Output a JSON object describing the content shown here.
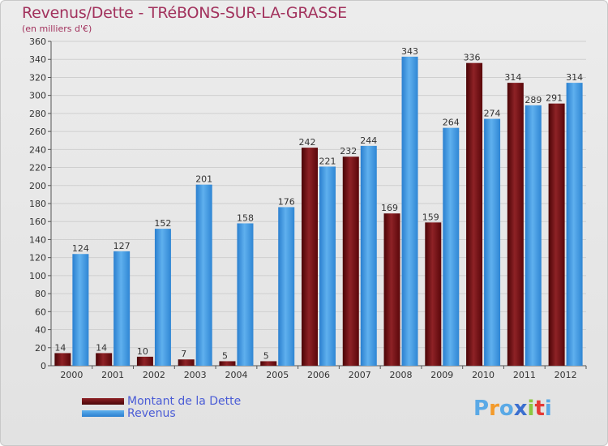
{
  "header": {
    "title": "Revenus/Dette - TRéBONS-SUR-LA-GRASSE",
    "subtitle": "(en milliers d'€)"
  },
  "chart_data": {
    "type": "bar",
    "title": "Revenus/Dette - TRéBONS-SUR-LA-GRASSE",
    "ylabel": "(en milliers d'€)",
    "xlabel": "",
    "categories": [
      "2000",
      "2001",
      "2002",
      "2003",
      "2004",
      "2005",
      "2006",
      "2007",
      "2008",
      "2009",
      "2010",
      "2011",
      "2012"
    ],
    "series": [
      {
        "name": "Montant de la Dette",
        "color": "#6b0a0e",
        "values": [
          14,
          14,
          10,
          7,
          5,
          5,
          242,
          232,
          169,
          159,
          336,
          314,
          291
        ]
      },
      {
        "name": "Revenus",
        "color": "#2c8ad6",
        "values": [
          124,
          127,
          152,
          201,
          158,
          176,
          221,
          244,
          343,
          264,
          274,
          289,
          314
        ]
      }
    ],
    "ylim": [
      0,
      360
    ],
    "ytick_step": 20,
    "grid": true,
    "legend_position": "bottom-left"
  },
  "legend": {
    "items": [
      {
        "label": "Montant de la Dette",
        "color": "#6b0a0e"
      },
      {
        "label": "Revenus",
        "color": "#2c8ad6"
      }
    ]
  },
  "logo": {
    "text": "Proxiti",
    "letters": [
      "P",
      "r",
      "o",
      "x",
      "i",
      "t",
      "i"
    ],
    "colors": [
      "#5aa9e6",
      "#f39a2b",
      "#5aa9e6",
      "#3b6fcf",
      "#8cc63f",
      "#e53935",
      "#5aa9e6"
    ]
  }
}
